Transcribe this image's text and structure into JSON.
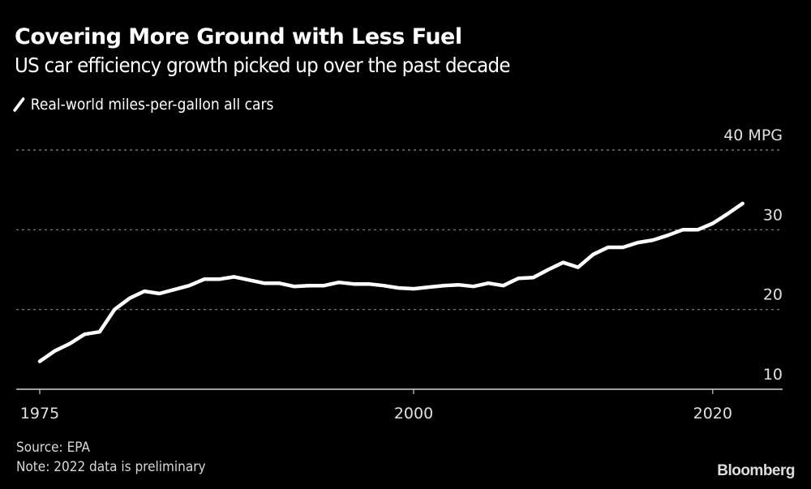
{
  "chart_data": {
    "type": "line",
    "title": "Covering More Ground with Less Fuel",
    "subtitle": "US car efficiency growth picked up over the past decade",
    "legend": [
      {
        "label": "Real-world miles-per-gallon all cars",
        "color": "#ffffff"
      }
    ],
    "legend_placement": "top-left",
    "x": [
      1975,
      1976,
      1977,
      1978,
      1979,
      1980,
      1981,
      1982,
      1983,
      1984,
      1985,
      1986,
      1987,
      1988,
      1989,
      1990,
      1991,
      1992,
      1993,
      1994,
      1995,
      1996,
      1997,
      1998,
      1999,
      2000,
      2001,
      2002,
      2003,
      2004,
      2005,
      2006,
      2007,
      2008,
      2009,
      2010,
      2011,
      2012,
      2013,
      2014,
      2015,
      2016,
      2017,
      2018,
      2019,
      2020,
      2021,
      2022
    ],
    "series": [
      {
        "name": "Real-world miles-per-gallon all cars",
        "color": "#ffffff",
        "values": [
          13.5,
          14.8,
          15.7,
          16.9,
          17.2,
          20.0,
          21.4,
          22.3,
          22.0,
          22.5,
          23.0,
          23.8,
          23.8,
          24.1,
          23.7,
          23.3,
          23.3,
          22.9,
          23.0,
          23.0,
          23.4,
          23.2,
          23.2,
          23.0,
          22.7,
          22.6,
          22.8,
          23.0,
          23.1,
          22.9,
          23.3,
          23.0,
          23.9,
          24.0,
          25.0,
          25.9,
          25.3,
          26.9,
          27.8,
          27.8,
          28.4,
          28.7,
          29.3,
          30.0,
          30.0,
          30.8,
          32.0,
          33.3
        ]
      }
    ],
    "xlim": [
      1975,
      2024.5
    ],
    "ylim": [
      10,
      40
    ],
    "x_ticks": [
      {
        "value": 1975,
        "label": "1975"
      },
      {
        "value": 2000,
        "label": "2000"
      },
      {
        "value": 2020,
        "label": "2020"
      }
    ],
    "y_ticks": [
      {
        "value": 40,
        "label": "40 MPG"
      },
      {
        "value": 30,
        "label": "30"
      },
      {
        "value": 20,
        "label": "20"
      },
      {
        "value": 10,
        "label": "10"
      }
    ],
    "y_axis_side": "right",
    "grid": "horizontal dotted",
    "background": "#000000"
  },
  "footer": {
    "source": "Source: EPA",
    "note": "Note: 2022 data is preliminary",
    "brand": "Bloomberg"
  }
}
